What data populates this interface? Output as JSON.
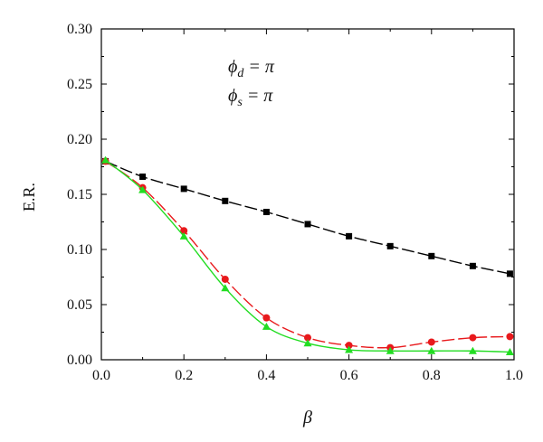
{
  "chart_data": {
    "type": "line",
    "xlabel": "β",
    "ylabel": "E.R.",
    "xlim": [
      0.0,
      1.0
    ],
    "ylim": [
      0.0,
      0.3
    ],
    "xticks": [
      "0.0",
      "0.2",
      "0.4",
      "0.6",
      "0.8",
      "1.0"
    ],
    "yticks": [
      "0.00",
      "0.05",
      "0.10",
      "0.15",
      "0.20",
      "0.25",
      "0.30"
    ],
    "annotations": [
      "ϕd = π",
      "ϕs = π"
    ],
    "grid": false,
    "series": [
      {
        "color": "#000000",
        "marker": "square",
        "dashed": true,
        "x": [
          0.01,
          0.1,
          0.2,
          0.3,
          0.4,
          0.5,
          0.6,
          0.7,
          0.8,
          0.9,
          0.99
        ],
        "y": [
          0.18,
          0.166,
          0.155,
          0.144,
          0.134,
          0.123,
          0.112,
          0.103,
          0.094,
          0.085,
          0.078
        ]
      },
      {
        "color": "#e8191c",
        "marker": "circle",
        "dashed": true,
        "x": [
          0.01,
          0.1,
          0.2,
          0.3,
          0.4,
          0.5,
          0.6,
          0.7,
          0.8,
          0.9,
          0.99
        ],
        "y": [
          0.18,
          0.156,
          0.117,
          0.073,
          0.038,
          0.02,
          0.013,
          0.011,
          0.016,
          0.02,
          0.021
        ]
      },
      {
        "color": "#22dd22",
        "marker": "triangle",
        "dashed": false,
        "x": [
          0.01,
          0.1,
          0.2,
          0.3,
          0.4,
          0.5,
          0.6,
          0.7,
          0.8,
          0.9,
          0.99
        ],
        "y": [
          0.181,
          0.154,
          0.112,
          0.065,
          0.03,
          0.015,
          0.009,
          0.008,
          0.008,
          0.008,
          0.007
        ]
      }
    ]
  }
}
